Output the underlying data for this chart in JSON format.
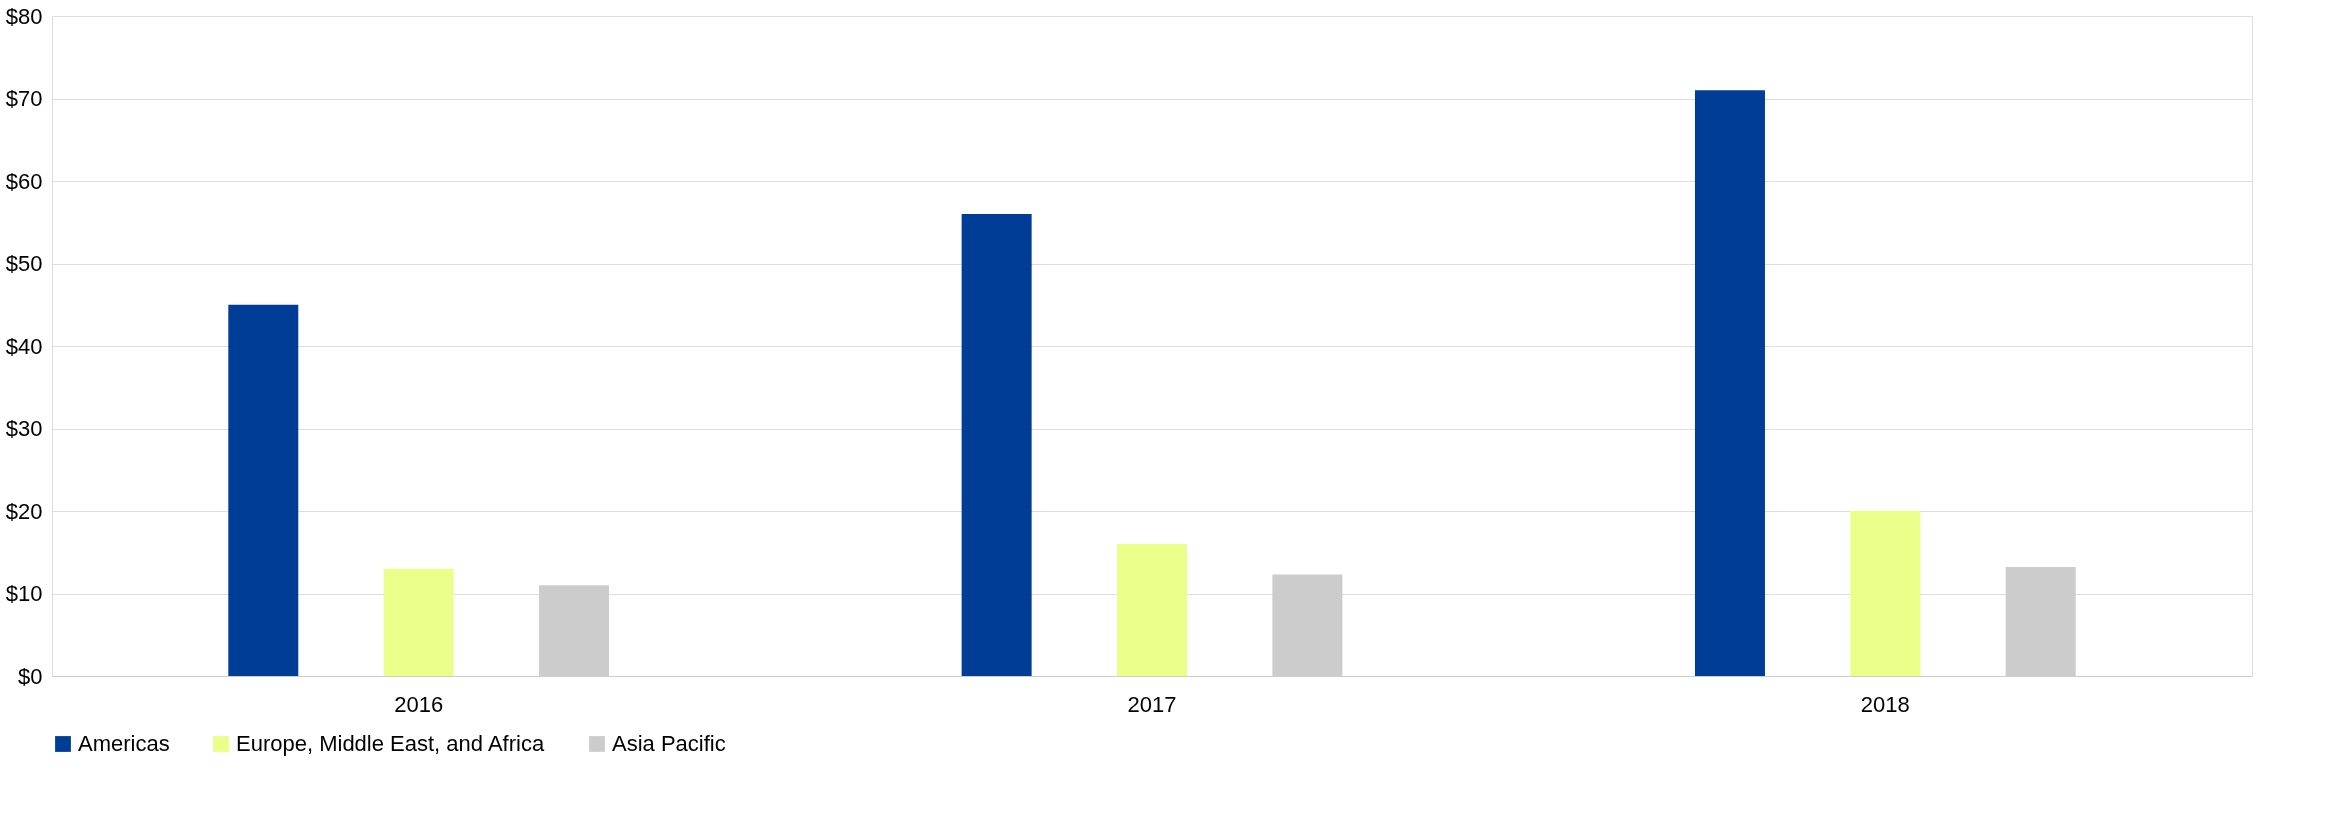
{
  "chart_data": {
    "type": "bar",
    "categories": [
      "2016",
      "2017",
      "2018"
    ],
    "series": [
      {
        "name": "Americas",
        "color": "#003d96",
        "values": [
          45,
          56,
          71
        ]
      },
      {
        "name": "Europe, Middle East, and Africa",
        "color": "#eaff8a",
        "values": [
          13,
          16,
          20
        ]
      },
      {
        "name": "Asia Pacific",
        "color": "#cccccc",
        "values": [
          11,
          12.3,
          13.2
        ]
      }
    ],
    "ylim": [
      0,
      80
    ],
    "yticks": [
      {
        "value": 0,
        "label": "$0"
      },
      {
        "value": 10,
        "label": "$10"
      },
      {
        "value": 20,
        "label": "$20"
      },
      {
        "value": 30,
        "label": "$30"
      },
      {
        "value": 40,
        "label": "$40"
      },
      {
        "value": 50,
        "label": "$50"
      },
      {
        "value": 60,
        "label": "$60"
      },
      {
        "value": 70,
        "label": "$70"
      },
      {
        "value": 80,
        "label": "$80"
      }
    ],
    "grid": "y",
    "legend": "bottom"
  }
}
